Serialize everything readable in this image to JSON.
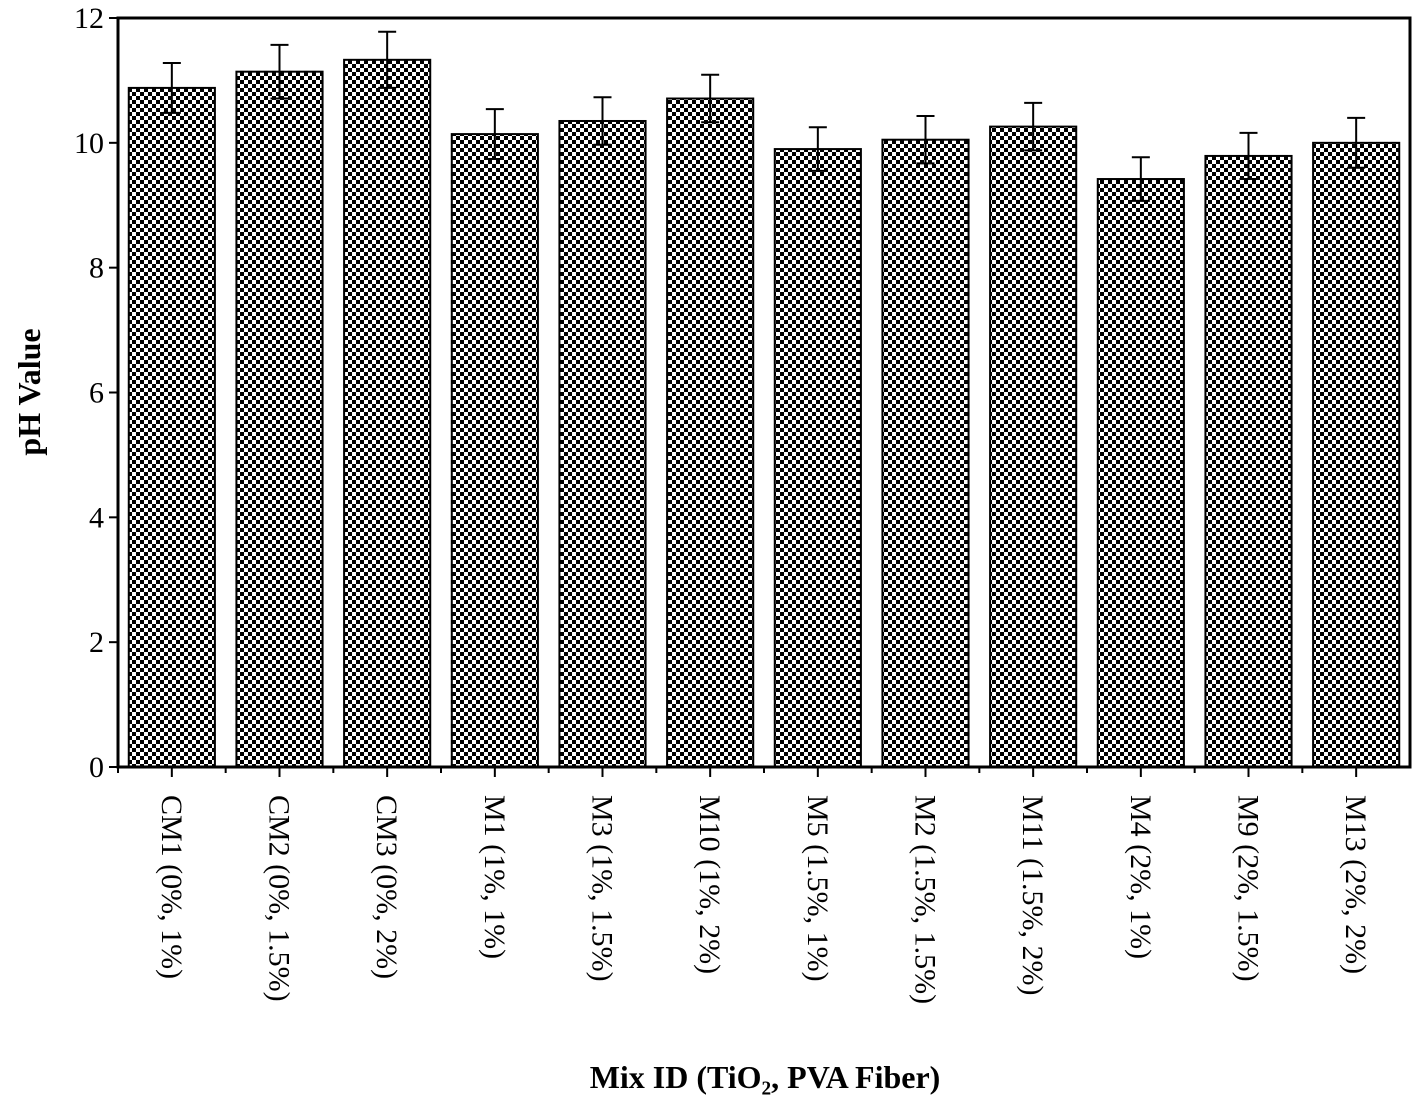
{
  "chart_data": {
    "type": "bar",
    "x_label": "Mix ID (TiO₂, PVA Fiber)",
    "y_label": "pH Value",
    "categories": [
      "CM1 (0%, 1%)",
      "CM2 (0%, 1.5%)",
      "CM3 (0%, 2%)",
      "M1 (1%, 1%)",
      "M3 (1%, 1.5%)",
      "M10 (1%, 2%)",
      "M5 (1.5%, 1%)",
      "M2 (1.5%, 1.5%)",
      "M11 (1.5%, 2%)",
      "M4 (2%, 1%)",
      "M9 (2%, 1.5%)",
      "M13 (2%, 2%)"
    ],
    "values": [
      10.88,
      11.14,
      11.33,
      10.14,
      10.35,
      10.71,
      9.9,
      10.05,
      10.26,
      9.42,
      9.79,
      10.0
    ],
    "errors": [
      0.4,
      0.43,
      0.45,
      0.4,
      0.38,
      0.38,
      0.35,
      0.38,
      0.38,
      0.35,
      0.37,
      0.4
    ],
    "color": "#000000",
    "ylim": [
      0,
      12
    ],
    "yticks": [
      0,
      2,
      4,
      6,
      8,
      10,
      12
    ]
  }
}
